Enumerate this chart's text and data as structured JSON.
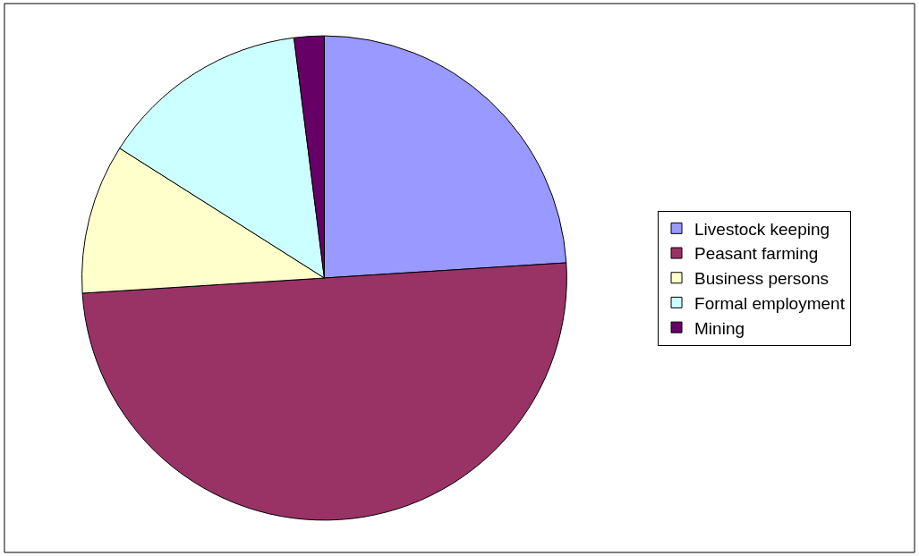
{
  "chart_data": {
    "type": "pie",
    "categories": [
      "Livestock keeping",
      "Peasant farming",
      "Business persons",
      "Formal employment",
      "Mining"
    ],
    "values": [
      24,
      50,
      10,
      14,
      2
    ],
    "colors": [
      "#9999ff",
      "#993366",
      "#ffffcc",
      "#ccffff",
      "#660066"
    ],
    "legend": "right"
  }
}
